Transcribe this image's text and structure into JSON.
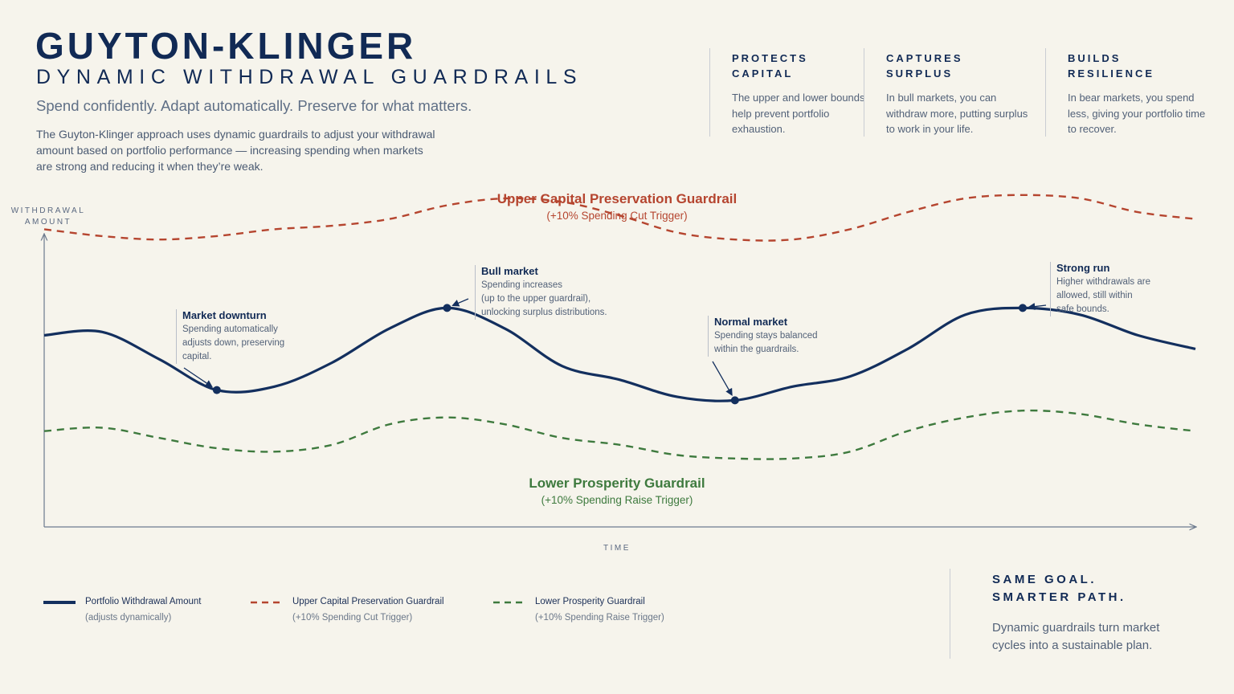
{
  "header": {
    "title": "GUYTON-KLINGER",
    "subtitle": "DYNAMIC WITHDRAWAL GUARDRAILS",
    "tagline": "Spend confidently. Adapt automatically. Preserve for what matters.",
    "intro": "The Guyton-Klinger approach uses dynamic guardrails to adjust your withdrawal amount based on portfolio performance — increasing spending when markets are strong and reducing it when they’re weak."
  },
  "features": [
    {
      "title": "PROTECTS\nCAPITAL",
      "body": "The upper and lower bounds help prevent portfolio exhaustion."
    },
    {
      "title": "CAPTURES\nSURPLUS",
      "body": "In bull markets, you can withdraw more, putting surplus to work in your life."
    },
    {
      "title": "BUILDS\nRESILIENCE",
      "body": "In bear markets, you spend less, giving your portfolio time to recover."
    }
  ],
  "chart_data": {
    "type": "line",
    "xlabel": "TIME",
    "ylabel": "WITHDRAWAL\nAMOUNT",
    "x": [
      0,
      1,
      2,
      3,
      4,
      5,
      6,
      7,
      8,
      9,
      10,
      11,
      12,
      13,
      14,
      15,
      16,
      17,
      18,
      19,
      20
    ],
    "ylim": [
      0,
      100
    ],
    "series": [
      {
        "name": "Upper Capital Preservation Guardrail",
        "subtitle": "(+10% Spending Cut Trigger)",
        "style": "dashed",
        "color": "#b5452f",
        "values": [
          87,
          85,
          84,
          85,
          87,
          88,
          90,
          94,
          96,
          95,
          91,
          86,
          84,
          84,
          87,
          92,
          96,
          97,
          96,
          92,
          90
        ]
      },
      {
        "name": "Portfolio Withdrawal Amount",
        "subtitle": "(adjusts dynamically)",
        "style": "solid",
        "color": "#132f5e",
        "values": [
          56,
          57,
          49,
          40,
          41,
          48,
          58,
          64,
          58,
          47,
          43,
          38,
          37,
          41,
          44,
          52,
          62,
          64,
          62,
          56,
          52
        ]
      },
      {
        "name": "Lower Prosperity Guardrail",
        "subtitle": "(+10% Spending Raise Trigger)",
        "style": "dashed",
        "color": "#3e7a3e",
        "values": [
          28,
          29,
          26,
          23,
          22,
          24,
          30,
          32,
          30,
          26,
          24,
          21,
          20,
          20,
          22,
          28,
          32,
          34,
          33,
          30,
          28
        ]
      }
    ],
    "annotations": [
      {
        "title": "Market downturn",
        "body": "Spending automatically\nadjusts down, preserving\ncapital."
      },
      {
        "title": "Bull market",
        "body": "Spending increases\n(up to the upper guardrail),\nunlocking surplus distributions."
      },
      {
        "title": "Normal market",
        "body": "Spending stays balanced\nwithin the guardrails."
      },
      {
        "title": "Strong run",
        "body": "Higher withdrawals are\nallowed, still within\nsafe bounds."
      }
    ]
  },
  "closing": {
    "title": "SAME GOAL.\nSMARTER PATH.",
    "body": "Dynamic guardrails turn market cycles into a sustainable plan."
  }
}
